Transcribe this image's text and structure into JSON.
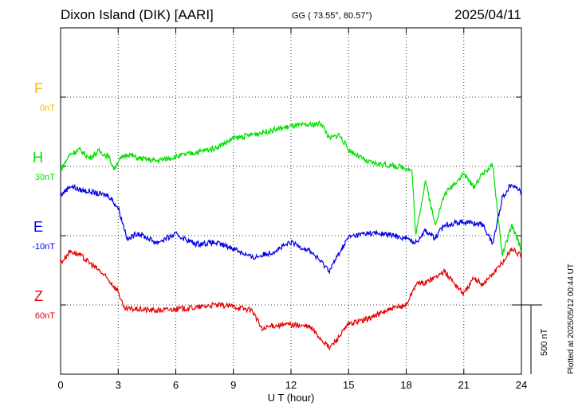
{
  "header": {
    "station": "Dixon Island (DIK)  [AARI]",
    "coords": "GG ( 73.55°,  80.57°)",
    "date": "2025/04/11"
  },
  "footer": {
    "plotted": "Plotted at 2025/05/12 00:44 UT",
    "scale": "500 nT"
  },
  "chart_data": {
    "type": "line",
    "xlabel": "U T (hour)",
    "xlim": [
      0,
      24
    ],
    "xticks": [
      "0",
      "3",
      "6",
      "9",
      "12",
      "15",
      "18",
      "21",
      "24"
    ],
    "grid": true,
    "scale_bar_nT": 500,
    "series": [
      {
        "name": "F",
        "offset_label": "0nT",
        "color": "#f5b800",
        "values": []
      },
      {
        "name": "H",
        "offset_label": "30nT",
        "color": "#00e000",
        "values": [
          [
            0,
            -30
          ],
          [
            0.5,
            90
          ],
          [
            1,
            120
          ],
          [
            1.5,
            60
          ],
          [
            2,
            110
          ],
          [
            2.5,
            70
          ],
          [
            2.8,
            -20
          ],
          [
            3,
            40
          ],
          [
            3.5,
            90
          ],
          [
            4,
            60
          ],
          [
            5,
            40
          ],
          [
            6,
            70
          ],
          [
            7,
            100
          ],
          [
            8,
            130
          ],
          [
            9,
            200
          ],
          [
            10,
            230
          ],
          [
            11,
            260
          ],
          [
            12,
            290
          ],
          [
            13,
            300
          ],
          [
            13.6,
            310
          ],
          [
            14,
            200
          ],
          [
            14.5,
            230
          ],
          [
            15,
            120
          ],
          [
            16,
            30
          ],
          [
            17,
            10
          ],
          [
            18,
            -10
          ],
          [
            18.3,
            -30
          ],
          [
            18.5,
            -500
          ],
          [
            19,
            -100
          ],
          [
            19.5,
            -420
          ],
          [
            20,
            -200
          ],
          [
            21,
            -50
          ],
          [
            21.5,
            -150
          ],
          [
            22,
            -50
          ],
          [
            22.5,
            10
          ],
          [
            23,
            -640
          ],
          [
            23.5,
            -430
          ],
          [
            24,
            -600
          ]
        ]
      },
      {
        "name": "E",
        "offset_label": "-10nT",
        "color": "#0000e6",
        "values": [
          [
            0,
            290
          ],
          [
            0.5,
            360
          ],
          [
            1,
            330
          ],
          [
            1.5,
            320
          ],
          [
            2,
            300
          ],
          [
            2.5,
            290
          ],
          [
            3,
            200
          ],
          [
            3.5,
            -30
          ],
          [
            4,
            20
          ],
          [
            5,
            -50
          ],
          [
            6,
            10
          ],
          [
            7,
            -60
          ],
          [
            8,
            -50
          ],
          [
            9,
            -90
          ],
          [
            10,
            -160
          ],
          [
            11,
            -120
          ],
          [
            12,
            -50
          ],
          [
            13,
            -110
          ],
          [
            14,
            -250
          ],
          [
            14.5,
            -130
          ],
          [
            15,
            -10
          ],
          [
            16,
            20
          ],
          [
            17,
            10
          ],
          [
            18,
            -20
          ],
          [
            18.5,
            -50
          ],
          [
            19,
            40
          ],
          [
            19.5,
            -20
          ],
          [
            20,
            80
          ],
          [
            21,
            100
          ],
          [
            22,
            80
          ],
          [
            22.5,
            -60
          ],
          [
            23,
            270
          ],
          [
            23.5,
            380
          ],
          [
            24,
            310
          ]
        ]
      },
      {
        "name": "Z",
        "offset_label": "60nT",
        "color": "#e60000",
        "values": [
          [
            0,
            300
          ],
          [
            0.5,
            390
          ],
          [
            1,
            360
          ],
          [
            2,
            250
          ],
          [
            2.5,
            180
          ],
          [
            3,
            100
          ],
          [
            3.3,
            -30
          ],
          [
            4,
            -30
          ],
          [
            5,
            -40
          ],
          [
            6,
            -30
          ],
          [
            7,
            -20
          ],
          [
            8,
            0
          ],
          [
            9,
            -10
          ],
          [
            10,
            -40
          ],
          [
            10.5,
            -180
          ],
          [
            11,
            -150
          ],
          [
            12,
            -140
          ],
          [
            13,
            -160
          ],
          [
            14,
            -310
          ],
          [
            14.5,
            -230
          ],
          [
            15,
            -140
          ],
          [
            16,
            -100
          ],
          [
            17,
            -40
          ],
          [
            18,
            0
          ],
          [
            18.5,
            150
          ],
          [
            19,
            160
          ],
          [
            20,
            240
          ],
          [
            20.5,
            160
          ],
          [
            21,
            80
          ],
          [
            21.5,
            190
          ],
          [
            22,
            150
          ],
          [
            23,
            300
          ],
          [
            23.5,
            410
          ],
          [
            24,
            350
          ]
        ]
      }
    ]
  }
}
